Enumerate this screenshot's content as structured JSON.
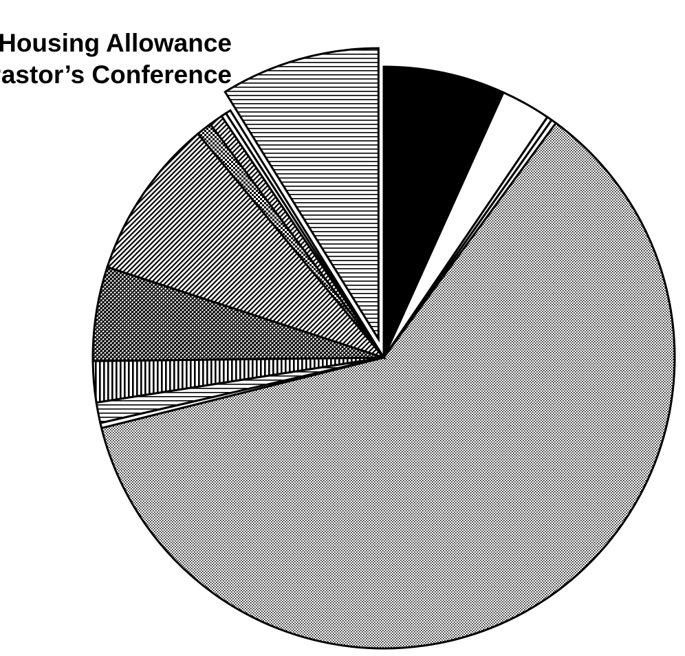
{
  "chart_data": {
    "type": "pie",
    "annotations": [
      "Housing Allowance",
      "Pastor’s Conference"
    ],
    "slices": [
      {
        "value": 7.1,
        "pattern": "solid",
        "exploded": false
      },
      {
        "value": 2.9,
        "pattern": "blank",
        "exploded": false
      },
      {
        "value": 0.3,
        "pattern": "blank",
        "exploded": false
      },
      {
        "value": 0.3,
        "pattern": "blank",
        "exploded": false
      },
      {
        "value": 64.2,
        "pattern": "fine-dots",
        "exploded": false
      },
      {
        "value": 0.3,
        "pattern": "blank",
        "exploded": false
      },
      {
        "value": 1.2,
        "pattern": "horizontal-lines",
        "exploded": false
      },
      {
        "value": 2.4,
        "pattern": "vertical-lines",
        "exploded": false
      },
      {
        "value": 5.5,
        "pattern": "dense-crosshatch",
        "exploded": false
      },
      {
        "value": 9.4,
        "pattern": "diagonal-hatch",
        "exploded": false
      },
      {
        "value": 0.9,
        "pattern": "checker",
        "exploded": false
      },
      {
        "value": 0.8,
        "pattern": "diagonal-hatch",
        "exploded": false
      },
      {
        "value": 0.3,
        "pattern": "blank",
        "exploded": false
      },
      {
        "value": 0.3,
        "pattern": "blank",
        "exploded": false
      },
      {
        "value": 9.3,
        "pattern": "horizontal-lines",
        "exploded": true,
        "annotation_index": 0
      }
    ],
    "start": "12 o'clock",
    "direction": "clockwise",
    "legend": "none",
    "colors": {
      "ink": "#000000",
      "background": "#ffffff"
    }
  }
}
